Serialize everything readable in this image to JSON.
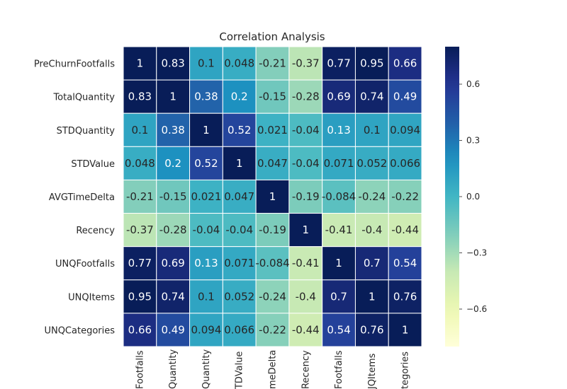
{
  "chart_data": {
    "type": "heatmap",
    "title": "Correlation Analysis",
    "rows": [
      "PreChurnFootfalls",
      "TotalQuantity",
      "STDQuantity",
      "STDValue",
      "AVGTimeDelta",
      "Recency",
      "UNQFootfalls",
      "UNQItems",
      "UNQCategories"
    ],
    "x_tick_labels_visible": [
      "Footfalls",
      "Quantity",
      "Quantity",
      "TDValue",
      "meDelta",
      "Recency",
      "Footfalls",
      "JQItems",
      "tegories"
    ],
    "values": [
      [
        1,
        0.83,
        0.1,
        0.048,
        -0.21,
        -0.37,
        0.77,
        0.95,
        0.66
      ],
      [
        0.83,
        1,
        0.38,
        0.2,
        -0.15,
        -0.28,
        0.69,
        0.74,
        0.49
      ],
      [
        0.1,
        0.38,
        1,
        0.52,
        0.021,
        -0.04,
        0.13,
        0.1,
        0.094
      ],
      [
        0.048,
        0.2,
        0.52,
        1,
        0.047,
        -0.04,
        0.071,
        0.052,
        0.066
      ],
      [
        -0.21,
        -0.15,
        0.021,
        0.047,
        1,
        -0.19,
        -0.084,
        -0.24,
        -0.22
      ],
      [
        -0.37,
        -0.28,
        -0.04,
        -0.04,
        -0.19,
        1,
        -0.41,
        -0.4,
        -0.44
      ],
      [
        0.77,
        0.69,
        0.13,
        0.071,
        -0.084,
        -0.41,
        1,
        0.7,
        0.54
      ],
      [
        0.95,
        0.74,
        0.1,
        0.052,
        -0.24,
        -0.4,
        0.7,
        1,
        0.76
      ],
      [
        0.66,
        0.49,
        0.094,
        0.066,
        -0.22,
        -0.44,
        0.54,
        0.76,
        1
      ]
    ],
    "colormap": "YlGnBu",
    "vmin": -0.8,
    "vmax": 0.8,
    "colorbar_ticks": [
      {
        "value": 0.6,
        "label": "0.6"
      },
      {
        "value": 0.3,
        "label": "0.3"
      },
      {
        "value": 0.0,
        "label": "0.0"
      },
      {
        "value": -0.3,
        "label": "−0.3"
      },
      {
        "value": -0.6,
        "label": "−0.6"
      }
    ],
    "annotate": true,
    "grid": false
  }
}
